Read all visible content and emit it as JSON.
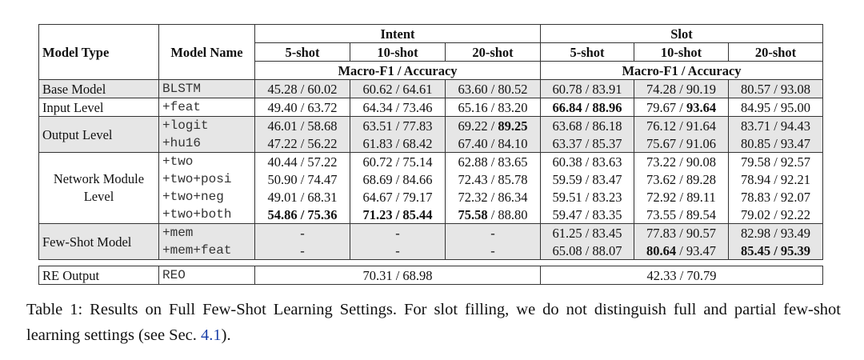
{
  "table": {
    "header": {
      "model_type": "Model Type",
      "model_name": "Model Name",
      "groups": [
        "Intent",
        "Slot"
      ],
      "shots": [
        "5-shot",
        "10-shot",
        "20-shot",
        "5-shot",
        "10-shot",
        "20-shot"
      ],
      "metric": [
        "Macro-F1 / Accuracy",
        "Macro-F1 / Accuracy"
      ]
    },
    "groups": [
      {
        "label": "Base Model",
        "shaded": true,
        "rows": [
          {
            "name": "BLSTM",
            "cells": [
              "45.28 / 60.02",
              "60.62 / 64.61",
              "63.60 / 80.52",
              "60.78 / 83.91",
              "74.28 / 90.19",
              "80.57 / 93.08"
            ]
          }
        ]
      },
      {
        "label": "Input Level",
        "shaded": false,
        "rows": [
          {
            "name": "+feat",
            "cells": [
              "49.40 / 63.72",
              "64.34 / 73.46",
              "65.16 / 83.20",
              [
                {
                  "text": "66.84 / 88.96",
                  "bold": true
                }
              ],
              [
                {
                  "text": "79.67 / ",
                  "bold": false
                },
                {
                  "text": "93.64",
                  "bold": true
                }
              ],
              "84.95 / 95.00"
            ]
          }
        ]
      },
      {
        "label": "Output Level",
        "shaded": true,
        "rows": [
          {
            "name": "+logit",
            "cells": [
              "46.01 / 58.68",
              "63.51 / 77.83",
              [
                {
                  "text": "69.22 / ",
                  "bold": false
                },
                {
                  "text": "89.25",
                  "bold": true
                }
              ],
              "63.68 / 86.18",
              "76.12 / 91.64",
              "83.71 / 94.43"
            ]
          },
          {
            "name": "+hu16",
            "cells": [
              "47.22 / 56.22",
              "61.83 / 68.42",
              "67.40 / 84.10",
              "63.37 / 85.37",
              "75.67 / 91.06",
              "80.85 / 93.47"
            ]
          }
        ]
      },
      {
        "label": "Network Module Level",
        "shaded": false,
        "rows": [
          {
            "name": "+two",
            "cells": [
              "40.44 / 57.22",
              "60.72 / 75.14",
              "62.88 / 83.65",
              "60.38 / 83.63",
              "73.22 / 90.08",
              "79.58 / 92.57"
            ]
          },
          {
            "name": "+two+posi",
            "cells": [
              "50.90 / 74.47",
              "68.69 / 84.66",
              "72.43 / 85.78",
              "59.59 / 83.47",
              "73.62 / 89.28",
              "78.94 / 92.21"
            ]
          },
          {
            "name": "+two+neg",
            "cells": [
              "49.01 / 68.31",
              "64.67 / 79.17",
              "72.32 / 86.34",
              "59.51 / 83.23",
              "72.92 / 89.11",
              "78.83 / 92.07"
            ]
          },
          {
            "name": "+two+both",
            "cells": [
              [
                {
                  "text": "54.86 / 75.36",
                  "bold": true
                }
              ],
              [
                {
                  "text": "71.23 / 85.44",
                  "bold": true
                }
              ],
              [
                {
                  "text": "75.58",
                  "bold": true
                },
                {
                  "text": " / 88.80",
                  "bold": false
                }
              ],
              "59.47 / 83.35",
              "73.55 / 89.54",
              "79.02 / 92.22"
            ]
          }
        ]
      },
      {
        "label": "Few-Shot Model",
        "shaded": true,
        "rows": [
          {
            "name": "+mem",
            "cells": [
              "-",
              "-",
              "-",
              "61.25 / 83.45",
              "77.83 / 90.57",
              "82.98 / 93.49"
            ]
          },
          {
            "name": "+mem+feat",
            "cells": [
              "-",
              "-",
              "-",
              "65.08 / 88.07",
              [
                {
                  "text": "80.64",
                  "bold": true
                },
                {
                  "text": " / 93.47",
                  "bold": false
                }
              ],
              [
                {
                  "text": "85.45 / 95.39",
                  "bold": true
                }
              ]
            ]
          }
        ]
      }
    ],
    "re_output": {
      "label": "RE Output",
      "name": "REO",
      "cells": [
        "70.31 / 68.98",
        "42.33 / 70.79"
      ]
    }
  },
  "caption": {
    "parts": [
      {
        "text": "Table 1: Results on Full Few-Shot Learning Settings.  For slot filling, we do not distinguish full and partial few-shot learning settings (see Sec. ",
        "link": false
      },
      {
        "text": "4.1",
        "link": true
      },
      {
        "text": ").",
        "link": false
      }
    ]
  }
}
